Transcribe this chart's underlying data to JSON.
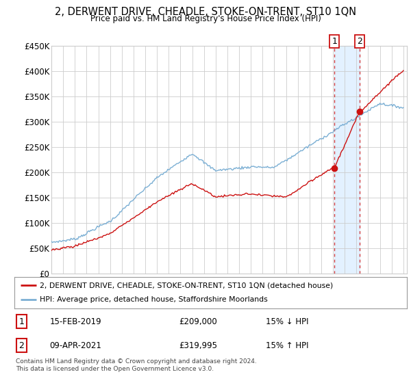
{
  "title": "2, DERWENT DRIVE, CHEADLE, STOKE-ON-TRENT, ST10 1QN",
  "subtitle": "Price paid vs. HM Land Registry's House Price Index (HPI)",
  "ylabel_ticks": [
    "£0",
    "£50K",
    "£100K",
    "£150K",
    "£200K",
    "£250K",
    "£300K",
    "£350K",
    "£400K",
    "£450K"
  ],
  "ytick_values": [
    0,
    50000,
    100000,
    150000,
    200000,
    250000,
    300000,
    350000,
    400000,
    450000
  ],
  "hpi_color": "#7bafd4",
  "price_color": "#cc1111",
  "sale1_year": 2019.12,
  "sale2_year": 2021.27,
  "marker1_price": 209000,
  "marker2_price": 319995,
  "sale1_date": "15-FEB-2019",
  "sale1_price": "£209,000",
  "sale1_hpi": "15% ↓ HPI",
  "sale2_date": "09-APR-2021",
  "sale2_price": "£319,995",
  "sale2_hpi": "15% ↑ HPI",
  "legend_label1": "2, DERWENT DRIVE, CHEADLE, STOKE-ON-TRENT, ST10 1QN (detached house)",
  "legend_label2": "HPI: Average price, detached house, Staffordshire Moorlands",
  "footer": "Contains HM Land Registry data © Crown copyright and database right 2024.\nThis data is licensed under the Open Government Licence v3.0.",
  "background_color": "#ffffff",
  "grid_color": "#cccccc",
  "highlight_bg": "#ddeeff"
}
